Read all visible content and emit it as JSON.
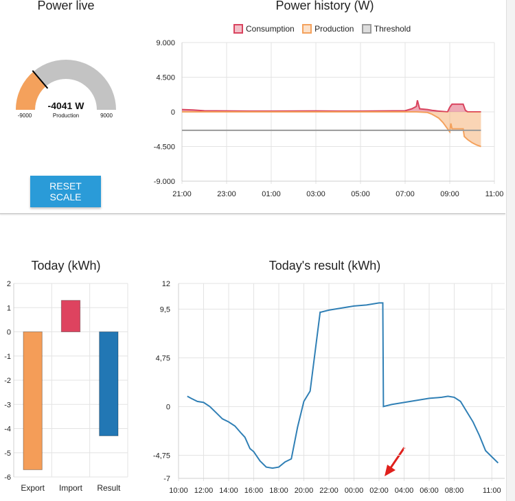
{
  "gauge": {
    "title": "Power live",
    "value_label": "-4041 W",
    "value": -4041,
    "subtitle": "Production",
    "min_label": "-9000",
    "max_label": "9000",
    "min": -9000,
    "max": 9000,
    "fill_color": "#f4a15c",
    "track_color": "#c3c3c3"
  },
  "reset_button": {
    "label": "RESET SCALE"
  },
  "chart_data": [
    {
      "type": "area",
      "title": "Power history (W)",
      "legend_placement": "top",
      "y_ticks": [
        "9.000",
        "4.500",
        "0",
        "-4.500",
        "-9.000"
      ],
      "x_ticks": [
        "21:00",
        "23:00",
        "01:00",
        "03:00",
        "05:00",
        "07:00",
        "09:00",
        "11:00"
      ],
      "ylim": [
        -9000,
        9000
      ],
      "grid": true,
      "x_unit": "hours since 21:00",
      "series": [
        {
          "name": "Consumption",
          "color": "#d9435e",
          "x": [
            0,
            0.5,
            1,
            2,
            3,
            4,
            5,
            6,
            7,
            8,
            9,
            10,
            10.3,
            10.5,
            10.55,
            10.65,
            11,
            11.2,
            11.5,
            11.9,
            12.0,
            12.1,
            12.3,
            12.6,
            12.7,
            12.8,
            12.9,
            13.0,
            13.2,
            13.4
          ],
          "values": [
            300,
            250,
            150,
            120,
            100,
            100,
            110,
            120,
            100,
            100,
            120,
            150,
            400,
            700,
            1500,
            400,
            300,
            200,
            100,
            0,
            600,
            1000,
            1000,
            1000,
            200,
            0,
            0,
            0,
            0,
            0
          ]
        },
        {
          "name": "Production",
          "color": "#f4a15c",
          "x": [
            0,
            10.5,
            11,
            11.2,
            11.5,
            11.7,
            11.9,
            12.0,
            12.05,
            12.1,
            12.6,
            12.65,
            12.8,
            13.0,
            13.2,
            13.4
          ],
          "values": [
            0,
            0,
            -80,
            -300,
            -800,
            -1400,
            -2200,
            -2600,
            -1500,
            -2200,
            -2200,
            -3200,
            -3600,
            -4000,
            -4300,
            -4500
          ]
        },
        {
          "name": "Threshold",
          "color": "#9a9a9a",
          "x": [
            0,
            13.4
          ],
          "values": [
            -2400,
            -2400
          ]
        }
      ]
    },
    {
      "type": "bar",
      "title": "Today (kWh)",
      "categories": [
        "Export",
        "Import",
        "Result"
      ],
      "values": [
        -5.7,
        1.3,
        -4.3
      ],
      "colors": [
        "#f49d58",
        "#de435f",
        "#2277b4"
      ],
      "y_ticks": [
        "2",
        "1",
        "0",
        "-1",
        "-2",
        "-3",
        "-4",
        "-5",
        "-6"
      ],
      "ylim": [
        -6,
        2
      ],
      "grid": true
    },
    {
      "type": "line",
      "title": "Today's result (kWh)",
      "color": "#2f7fb5",
      "y_ticks": [
        "12",
        "9,5",
        "4,75",
        "0",
        "-4,75",
        "-7"
      ],
      "x_ticks": [
        "10:00",
        "12:00",
        "14:00",
        "16:00",
        "18:00",
        "20:00",
        "22:00",
        "00:00",
        "02:00",
        "04:00",
        "06:00",
        "08:00",
        "11:00"
      ],
      "ylim": [
        -7,
        12
      ],
      "grid": true,
      "x_unit": "hours since 10:00",
      "x": [
        0.7,
        1.0,
        1.5,
        2.0,
        2.5,
        3.0,
        3.5,
        4.0,
        4.5,
        5.0,
        5.3,
        5.7,
        6.0,
        6.5,
        7.0,
        7.5,
        8.0,
        8.5,
        9.0,
        9.5,
        10.0,
        10.5,
        11.3,
        11.35,
        12.0,
        13.0,
        14.0,
        15.0,
        16.0,
        16.3,
        16.35,
        17.0,
        18.0,
        19.0,
        20.0,
        21.0,
        21.5,
        22.0,
        22.5,
        23.0,
        23.5,
        24.0,
        24.5,
        25.0,
        25.5
      ],
      "values": [
        1.0,
        0.8,
        0.5,
        0.4,
        0.0,
        -0.6,
        -1.2,
        -1.5,
        -1.9,
        -2.6,
        -3.0,
        -4.1,
        -4.4,
        -5.3,
        -5.9,
        -6.0,
        -5.9,
        -5.4,
        -5.1,
        -2.0,
        0.5,
        1.5,
        9.2,
        9.2,
        9.4,
        9.6,
        9.8,
        9.9,
        10.1,
        10.1,
        0.0,
        0.2,
        0.4,
        0.6,
        0.8,
        0.9,
        1.0,
        0.9,
        0.5,
        -0.5,
        -1.5,
        -2.8,
        -4.3,
        -4.9,
        -5.5
      ]
    }
  ]
}
